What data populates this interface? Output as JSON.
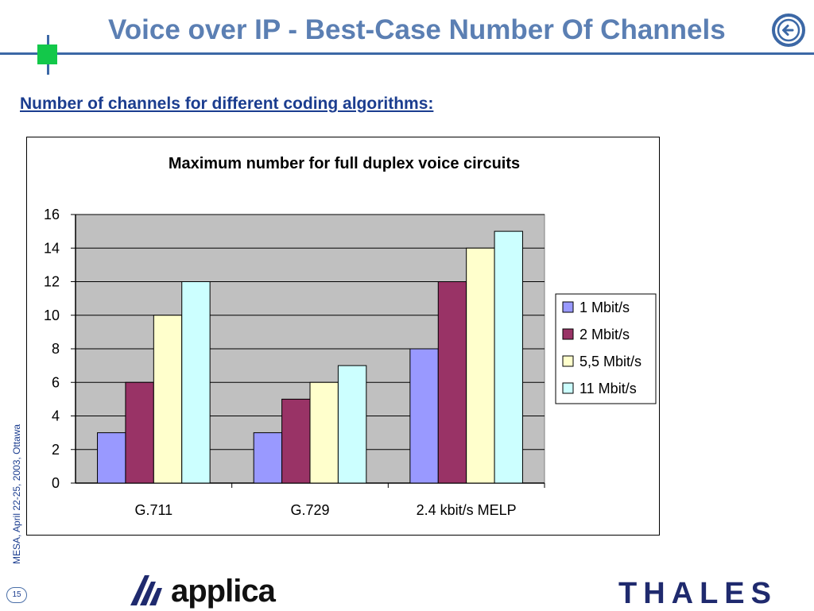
{
  "slide": {
    "title": "Voice over IP - Best-Case Number Of Channels",
    "subtitle": "Number of channels for different coding algorithms:",
    "side_note": "MESA, April 22-25, 2003, Ottawa",
    "page_number": "15",
    "back_icon": "back-arrow-icon",
    "logos": {
      "applica": "applica",
      "thales": "THALES"
    }
  },
  "chart_data": {
    "type": "bar",
    "title": "Maximum number for full duplex voice circuits",
    "xlabel": "",
    "ylabel": "",
    "categories": [
      "G.711",
      "G.729",
      "2.4 kbit/s MELP"
    ],
    "series": [
      {
        "name": "1 Mbit/s",
        "values": [
          3,
          3,
          8
        ],
        "color": "#9999ff"
      },
      {
        "name": "2 Mbit/s",
        "values": [
          6,
          5,
          12
        ],
        "color": "#993366"
      },
      {
        "name": "5,5 Mbit/s",
        "values": [
          10,
          6,
          14
        ],
        "color": "#ffffcc"
      },
      {
        "name": "11 Mbit/s",
        "values": [
          12,
          7,
          15
        ],
        "color": "#ccffff"
      }
    ],
    "yticks": [
      0,
      2,
      4,
      6,
      8,
      10,
      12,
      14,
      16
    ],
    "ylim": [
      0,
      16
    ],
    "grid": true,
    "plot_background": "#c0c0c0",
    "legend": "right"
  }
}
